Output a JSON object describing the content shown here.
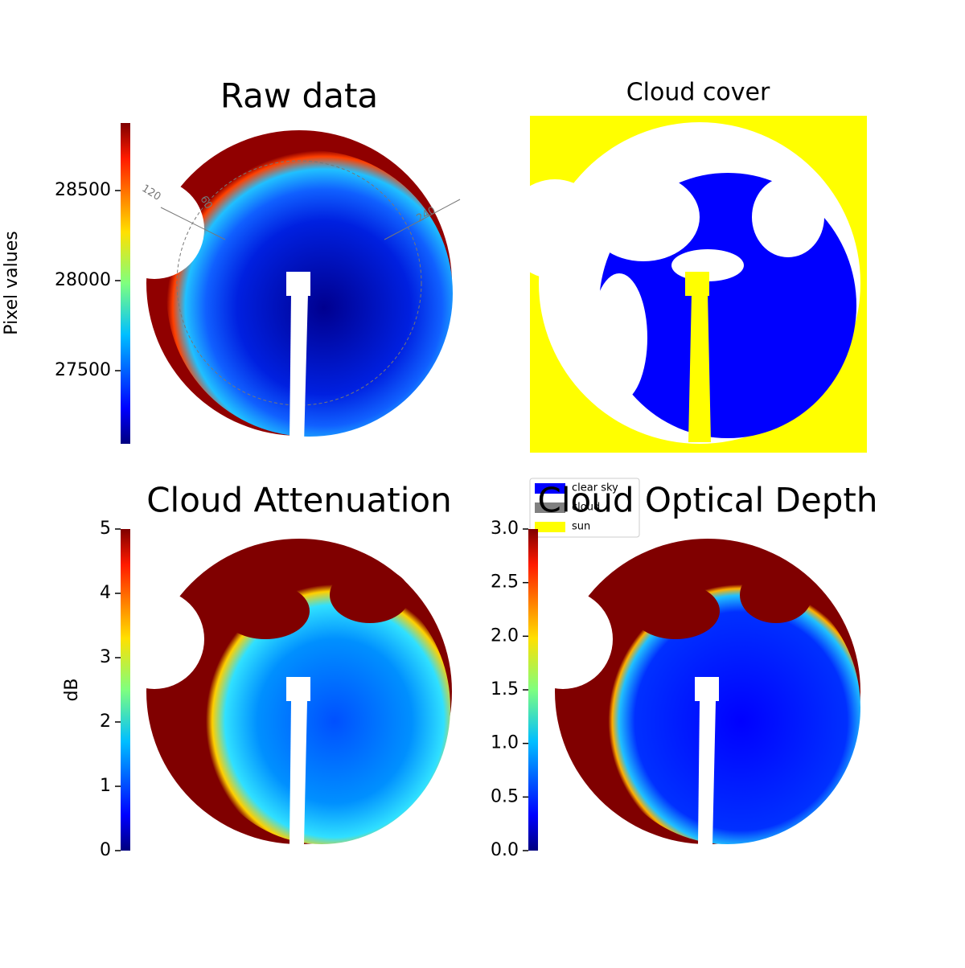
{
  "chart_data": [
    {
      "type": "image",
      "title": "Raw data",
      "colorbar": {
        "label": "Pixel values",
        "ylim": [
          27094,
          28875
        ],
        "yticks": [
          27500,
          28000,
          28500
        ]
      },
      "annotations": [
        "120",
        "60",
        "240"
      ]
    },
    {
      "type": "image",
      "title": "Cloud cover",
      "legend": [
        {
          "name": "clear sky",
          "color": "#0000ff"
        },
        {
          "name": "cloud",
          "color": "#808080"
        },
        {
          "name": "sun",
          "color": "#ffff00"
        }
      ]
    },
    {
      "type": "image",
      "title": "Cloud Attenuation",
      "colorbar": {
        "label": "dB",
        "ylim": [
          0,
          5
        ],
        "yticks": [
          0,
          1,
          2,
          3,
          4,
          5
        ]
      }
    },
    {
      "type": "image",
      "title": "Cloud Optical Depth",
      "colorbar": {
        "ylim": [
          0,
          3
        ],
        "yticks": [
          {
            "value": 0,
            "label": "0.0"
          },
          0.5,
          {
            "value": 1,
            "label": "1.0"
          },
          1.5,
          {
            "value": 2,
            "label": "2.0"
          },
          2.5,
          {
            "value": 3,
            "label": "3.0"
          }
        ]
      }
    }
  ]
}
